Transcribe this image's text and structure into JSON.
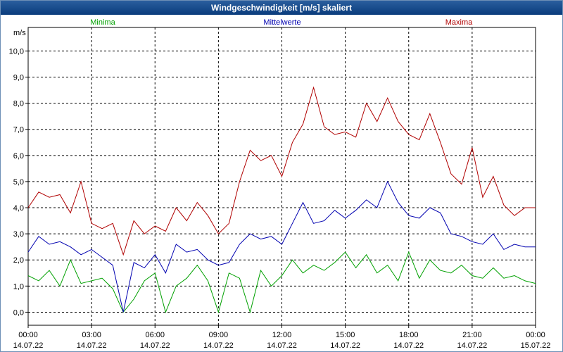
{
  "window": {
    "title": "Windgeschwindigkeit [m/s] skaliert"
  },
  "chart_data": {
    "type": "line",
    "title": "Windgeschwindigkeit [m/s] skaliert",
    "ylabel": "m/s",
    "ylim": [
      -0.5,
      10.9
    ],
    "xlim_hours": [
      0,
      24
    ],
    "grid": true,
    "y_ticks": [
      "0,0",
      "1,0",
      "2,0",
      "3,0",
      "4,0",
      "5,0",
      "6,0",
      "7,0",
      "8,0",
      "9,0",
      "10,0"
    ],
    "y_tick_values": [
      0,
      1,
      2,
      3,
      4,
      5,
      6,
      7,
      8,
      9,
      10
    ],
    "x_ticks": [
      {
        "hour": 0,
        "time": "00:00",
        "date": "14.07.22"
      },
      {
        "hour": 3,
        "time": "03:00",
        "date": "14.07.22"
      },
      {
        "hour": 6,
        "time": "06:00",
        "date": "14.07.22"
      },
      {
        "hour": 9,
        "time": "09:00",
        "date": "14.07.22"
      },
      {
        "hour": 12,
        "time": "12:00",
        "date": "14.07.22"
      },
      {
        "hour": 15,
        "time": "15:00",
        "date": "14.07.22"
      },
      {
        "hour": 18,
        "time": "18:00",
        "date": "14.07.22"
      },
      {
        "hour": 21,
        "time": "21:00",
        "date": "14.07.22"
      },
      {
        "hour": 24,
        "time": "00:00",
        "date": "15.07.22"
      }
    ],
    "series": [
      {
        "name": "Minima",
        "color": "#00a000",
        "legend_position": "left",
        "x": [
          0,
          0.5,
          1,
          1.5,
          2,
          2.5,
          3,
          3.5,
          4,
          4.5,
          5,
          5.5,
          6,
          6.5,
          7,
          7.5,
          8,
          8.5,
          9,
          9.5,
          10,
          10.5,
          11,
          11.5,
          12,
          12.5,
          13,
          13.5,
          14,
          14.5,
          15,
          15.5,
          16,
          16.5,
          17,
          17.5,
          18,
          18.5,
          19,
          19.5,
          20,
          20.5,
          21,
          21.5,
          22,
          22.5,
          23,
          23.5,
          24
        ],
        "values": [
          1.4,
          1.2,
          1.6,
          1.0,
          2.0,
          1.1,
          1.2,
          1.3,
          0.9,
          0.0,
          0.5,
          1.2,
          1.5,
          0.0,
          1.0,
          1.3,
          1.8,
          1.2,
          0.0,
          1.5,
          1.3,
          0.0,
          1.6,
          1.0,
          1.4,
          2.0,
          1.5,
          1.8,
          1.6,
          1.9,
          2.3,
          1.7,
          2.2,
          1.5,
          1.8,
          1.2,
          2.3,
          1.3,
          2.0,
          1.6,
          1.5,
          1.8,
          1.4,
          1.3,
          1.7,
          1.3,
          1.4,
          1.2,
          1.1
        ]
      },
      {
        "name": "Mittelwerte",
        "color": "#0000b0",
        "legend_position": "center",
        "x": [
          0,
          0.5,
          1,
          1.5,
          2,
          2.5,
          3,
          3.5,
          4,
          4.5,
          5,
          5.5,
          6,
          6.5,
          7,
          7.5,
          8,
          8.5,
          9,
          9.5,
          10,
          10.5,
          11,
          11.5,
          12,
          12.5,
          13,
          13.5,
          14,
          14.5,
          15,
          15.5,
          16,
          16.5,
          17,
          17.5,
          18,
          18.5,
          19,
          19.5,
          20,
          20.5,
          21,
          21.5,
          22,
          22.5,
          23,
          23.5,
          24
        ],
        "values": [
          2.3,
          2.9,
          2.6,
          2.7,
          2.5,
          2.2,
          2.4,
          2.1,
          1.8,
          0.0,
          1.9,
          1.7,
          2.2,
          1.5,
          2.6,
          2.3,
          2.4,
          2.0,
          1.8,
          1.9,
          2.6,
          3.0,
          2.8,
          2.9,
          2.6,
          3.4,
          4.2,
          3.4,
          3.5,
          3.9,
          3.6,
          3.9,
          4.3,
          4.0,
          5.0,
          4.2,
          3.7,
          3.6,
          4.0,
          3.8,
          3.0,
          2.9,
          2.7,
          2.6,
          3.0,
          2.4,
          2.6,
          2.5,
          2.5
        ]
      },
      {
        "name": "Maxima",
        "color": "#b00000",
        "legend_position": "right",
        "x": [
          0,
          0.5,
          1,
          1.5,
          2,
          2.5,
          3,
          3.5,
          4,
          4.5,
          5,
          5.5,
          6,
          6.5,
          7,
          7.5,
          8,
          8.5,
          9,
          9.5,
          10,
          10.5,
          11,
          11.5,
          12,
          12.5,
          13,
          13.5,
          14,
          14.5,
          15,
          15.5,
          16,
          16.5,
          17,
          17.5,
          18,
          18.5,
          19,
          19.5,
          20,
          20.5,
          21,
          21.5,
          22,
          22.5,
          23,
          23.5,
          24
        ],
        "values": [
          4.0,
          4.6,
          4.4,
          4.5,
          3.8,
          5.0,
          3.4,
          3.2,
          3.4,
          2.2,
          3.5,
          3.0,
          3.3,
          3.1,
          4.0,
          3.5,
          4.2,
          3.7,
          3.0,
          3.4,
          5.0,
          6.2,
          5.8,
          6.0,
          5.2,
          6.5,
          7.2,
          8.6,
          7.1,
          6.8,
          6.9,
          6.7,
          8.0,
          7.3,
          8.2,
          7.3,
          6.8,
          6.6,
          7.6,
          6.5,
          5.3,
          4.9,
          6.3,
          4.4,
          5.2,
          4.1,
          3.7,
          4.0,
          4.0
        ]
      }
    ]
  }
}
